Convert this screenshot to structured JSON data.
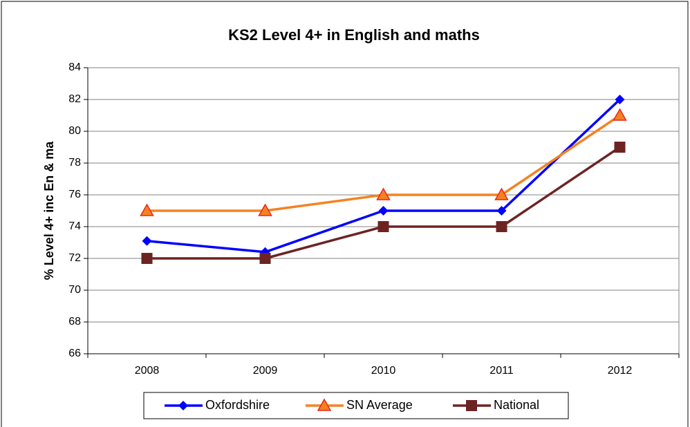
{
  "chart_data": {
    "type": "line",
    "title": "KS2 Level 4+ in English and maths",
    "y_label": "% Level 4+ inc En & ma",
    "categories": [
      "2008",
      "2009",
      "2010",
      "2011",
      "2012"
    ],
    "series": [
      {
        "name": "Oxfordshire",
        "color": "#0000ff",
        "marker": "diamond",
        "values": [
          73.1,
          72.4,
          75,
          75,
          82
        ]
      },
      {
        "name": "SN Average",
        "color": "#f58220",
        "marker": "triangle",
        "values": [
          75,
          75,
          76,
          76,
          81
        ]
      },
      {
        "name": "National",
        "color": "#6e2323",
        "marker": "square",
        "values": [
          72,
          72,
          74,
          74,
          79
        ]
      }
    ],
    "ylim": [
      66,
      84
    ],
    "yticks": [
      66,
      68,
      70,
      72,
      74,
      76,
      78,
      80,
      82,
      84
    ],
    "grid": true,
    "legend": "bottom"
  }
}
